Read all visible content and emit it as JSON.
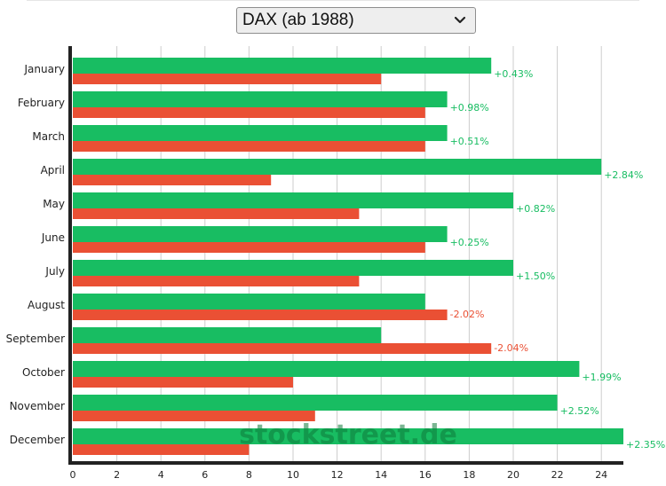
{
  "index_selector": {
    "selected": "DAX (ab 1988)"
  },
  "colors": {
    "positive": "#18bd62",
    "negative": "#ea5034",
    "grid": "#cccccc",
    "axis": "#222222",
    "text": "#222222",
    "watermark": "#0e7a3a"
  },
  "watermark": "stockstreet.de",
  "chart_data": {
    "type": "bar",
    "orientation": "horizontal",
    "categories": [
      "January",
      "February",
      "March",
      "April",
      "May",
      "June",
      "July",
      "August",
      "September",
      "October",
      "November",
      "December"
    ],
    "series": [
      {
        "color": "#18bd62",
        "values": [
          19,
          17,
          17,
          24,
          20,
          17,
          20,
          16,
          14,
          23,
          22,
          25
        ]
      },
      {
        "color": "#ea5034",
        "values": [
          14,
          16,
          16,
          9,
          13,
          16,
          13,
          17,
          19,
          10,
          11,
          8
        ]
      }
    ],
    "data_labels": [
      "+0.43%",
      "+0.98%",
      "+0.51%",
      "+2.84%",
      "+0.82%",
      "+0.25%",
      "+1.50%",
      "-2.02%",
      "-2.04%",
      "+1.99%",
      "+2.52%",
      "+2.35%"
    ],
    "label_sign": [
      "positive",
      "positive",
      "positive",
      "positive",
      "positive",
      "positive",
      "positive",
      "negative",
      "negative",
      "positive",
      "positive",
      "positive"
    ],
    "x_ticks": [
      0,
      2,
      4,
      6,
      8,
      10,
      12,
      14,
      16,
      18,
      20,
      22,
      24
    ],
    "xlim": [
      0,
      25
    ],
    "grid": true,
    "title": "",
    "xlabel": "",
    "ylabel": ""
  }
}
